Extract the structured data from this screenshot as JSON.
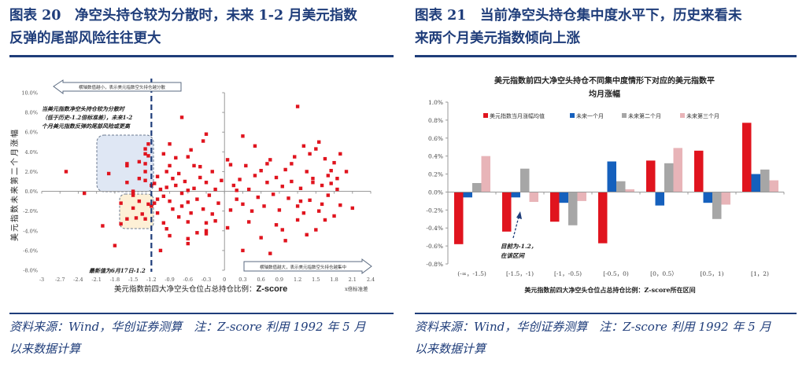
{
  "left": {
    "header_line1": "图表 20　净空头持仓较为分散时，未来 1-2 月美元指数",
    "header_line2": "反弹的尾部风险往往更大",
    "footer_line1": "资料来源：Wind，华创证券测算　注：Z-score 利用 1992 年 5 月",
    "footer_line2": "以来数据计算"
  },
  "right": {
    "header_line1": "图表 21　当前净空头持仓集中度水平下，历史来看未",
    "header_line2": "来两个月美元指数倾向上涨",
    "footer_line1": "资料来源：Wind，华创证券测算　注：Z-score 利用 1992 年 5 月",
    "footer_line2": "以来数据计算"
  },
  "colors": {
    "header": "#1f3d7a",
    "scatter": "#e0141e",
    "red": "#e0141e",
    "blue": "#1560bd",
    "gray": "#a6a6a6",
    "pink": "#e8b4b8"
  },
  "chart_data": [
    {
      "type": "scatter",
      "xlabel": "美元指数前四大净空头仓位占总持仓比例：",
      "xlabel_bold": "Z-score",
      "x_unit_label": "x倍标准差",
      "ylabel": "美元指数未来第二个月涨幅",
      "xlim": [
        -3,
        2.4
      ],
      "ylim": [
        -8,
        10
      ],
      "x_ticks": [
        "-3",
        "-2.7",
        "-2.4",
        "-2.1",
        "-1.8",
        "-1.5",
        "-1.2",
        "-0.9",
        "-0.6",
        "-0.3",
        "0",
        "0.3",
        "0.6",
        "0.9",
        "1.2",
        "1.5",
        "1.8",
        "2.1",
        "2.4"
      ],
      "y_ticks": [
        "10.0%",
        "8.0%",
        "6.0%",
        "4.0%",
        "2.0%",
        "0.0%",
        "-2.0%",
        "-4.0%",
        "-6.0%",
        "-8.0%"
      ],
      "reference_line_x": -1.2,
      "annotations": {
        "left_arrow": "横轴数值越小，表示美元指数空头持仓越分散",
        "right_arrow": "横轴数值越大，表示美元指数空头持仓越集中",
        "note_line1": "当美元指数净空头持仓较为分散时",
        "note_line2": "（低于历史-1.2倍标准差），未来1-2",
        "note_line3": "个月美元指数反弹的尾部风险或更高",
        "latest": "最新值为6月17日-1.2"
      },
      "points": [
        [
          -2.6,
          2.0
        ],
        [
          -2.3,
          -0.2
        ],
        [
          -1.9,
          1.8
        ],
        [
          -2.0,
          -3.5
        ],
        [
          -1.8,
          -5.5
        ],
        [
          -1.6,
          2.8
        ],
        [
          -1.6,
          2.6
        ],
        [
          -1.4,
          3.0
        ],
        [
          -1.4,
          1.3
        ],
        [
          -1.6,
          0.9
        ],
        [
          -1.5,
          0.0
        ],
        [
          -1.3,
          2.0
        ],
        [
          -1.25,
          4.8
        ],
        [
          -1.25,
          3.6
        ],
        [
          -1.3,
          3.8
        ],
        [
          -1.3,
          2.8
        ],
        [
          -1.3,
          1.1
        ],
        [
          -1.2,
          0.6
        ],
        [
          -1.5,
          -0.1
        ],
        [
          -1.4,
          -1.0
        ],
        [
          -1.5,
          -1.7
        ],
        [
          -1.35,
          -2.3
        ],
        [
          -1.3,
          -2.8
        ],
        [
          -1.25,
          -1.3
        ],
        [
          -1.6,
          -2.8
        ],
        [
          -1.7,
          -3.3
        ],
        [
          -1.7,
          -1.2
        ],
        [
          -1.2,
          -1.5
        ],
        [
          -1.45,
          -2.7
        ],
        [
          -1.3,
          4.3
        ],
        [
          -1.5,
          -0.4
        ],
        [
          -0.7,
          7.5
        ],
        [
          1.2,
          8.6
        ],
        [
          0.3,
          5.6
        ],
        [
          -0.3,
          5.8
        ],
        [
          -0.35,
          5.1
        ],
        [
          -0.9,
          4.8
        ],
        [
          -1.0,
          3.8
        ],
        [
          -0.8,
          3.4
        ],
        [
          -0.75,
          1.8
        ],
        [
          -0.55,
          4.2
        ],
        [
          -0.6,
          3.5
        ],
        [
          -0.5,
          2.6
        ],
        [
          -0.95,
          2.0
        ],
        [
          -1.1,
          1.5
        ],
        [
          -1.15,
          0.8
        ],
        [
          -1.05,
          0.2
        ],
        [
          -1.0,
          -0.5
        ],
        [
          -0.9,
          -1.0
        ],
        [
          -0.85,
          -1.8
        ],
        [
          -1.1,
          -2.2
        ],
        [
          -1.0,
          -3.2
        ],
        [
          -0.95,
          -3.8
        ],
        [
          -1.05,
          -6.0
        ],
        [
          -0.6,
          -5.3
        ],
        [
          -0.6,
          -4.8
        ],
        [
          -0.9,
          -4.5
        ],
        [
          -0.45,
          -4.2
        ],
        [
          -0.3,
          -4.3
        ],
        [
          -0.3,
          -4.0
        ],
        [
          -0.15,
          -3.0
        ],
        [
          -0.6,
          -3.1
        ],
        [
          -0.3,
          -3.2
        ],
        [
          -0.8,
          0.6
        ],
        [
          -0.7,
          -0.2
        ],
        [
          -0.65,
          1.0
        ],
        [
          -0.6,
          -1.1
        ],
        [
          -0.5,
          0.3
        ],
        [
          -0.45,
          -0.8
        ],
        [
          -0.4,
          1.4
        ],
        [
          -0.35,
          -1.8
        ],
        [
          -0.3,
          0.9
        ],
        [
          -0.25,
          -0.4
        ],
        [
          -0.2,
          2.0
        ],
        [
          -0.15,
          0.2
        ],
        [
          -0.1,
          -1.2
        ],
        [
          -0.05,
          1.1
        ],
        [
          -0.55,
          -2.2
        ],
        [
          -0.75,
          -2.6
        ],
        [
          -0.85,
          1.3
        ],
        [
          -1.1,
          -0.8
        ],
        [
          -0.95,
          0.4
        ],
        [
          -0.7,
          -1.5
        ],
        [
          -0.4,
          2.5
        ],
        [
          -0.2,
          -2.3
        ],
        [
          -1.15,
          -1.2
        ],
        [
          -0.9,
          2.6
        ],
        [
          -0.6,
          0.1
        ],
        [
          0.05,
          3.2
        ],
        [
          0.1,
          2.7
        ],
        [
          0.15,
          0.6
        ],
        [
          0.2,
          -0.8
        ],
        [
          0.25,
          1.2
        ],
        [
          0.3,
          -1.3
        ],
        [
          0.35,
          2.6
        ],
        [
          0.4,
          0.2
        ],
        [
          0.45,
          -2.0
        ],
        [
          0.5,
          1.6
        ],
        [
          0.55,
          -0.6
        ],
        [
          0.6,
          2.1
        ],
        [
          0.65,
          -1.5
        ],
        [
          0.7,
          0.9
        ],
        [
          0.75,
          3.2
        ],
        [
          0.8,
          -0.3
        ],
        [
          0.85,
          1.4
        ],
        [
          0.9,
          -1.9
        ],
        [
          0.95,
          0.5
        ],
        [
          1.0,
          2.2
        ],
        [
          0.05,
          -3.7
        ],
        [
          0.3,
          -6.0
        ],
        [
          0.75,
          -6.3
        ],
        [
          0.6,
          -4.7
        ],
        [
          1.0,
          -5.0
        ],
        [
          0.4,
          -3.1
        ],
        [
          0.85,
          -3.4
        ],
        [
          0.95,
          -3.9
        ],
        [
          0.2,
          0.1
        ],
        [
          0.1,
          -1.9
        ],
        [
          0.5,
          4.6
        ],
        [
          0.7,
          2.8
        ],
        [
          1.05,
          -0.7
        ],
        [
          1.1,
          1.0
        ],
        [
          1.15,
          3.5
        ],
        [
          1.2,
          -1.5
        ],
        [
          1.25,
          0.3
        ],
        [
          1.3,
          4.6
        ],
        [
          1.35,
          2.0
        ],
        [
          1.4,
          -0.9
        ],
        [
          1.45,
          1.3
        ],
        [
          1.5,
          4.3
        ],
        [
          1.55,
          -2.0
        ],
        [
          1.6,
          0.6
        ],
        [
          1.65,
          3.3
        ],
        [
          1.7,
          -0.4
        ],
        [
          1.75,
          2.1
        ],
        [
          1.8,
          -2.5
        ],
        [
          1.85,
          0.2
        ],
        [
          1.9,
          3.8
        ],
        [
          2.0,
          2.0
        ],
        [
          2.1,
          -1.7
        ],
        [
          1.35,
          -4.4
        ],
        [
          1.5,
          -3.9
        ],
        [
          1.2,
          -2.9
        ],
        [
          1.4,
          3.8
        ],
        [
          1.6,
          -1.3
        ],
        [
          1.7,
          1.6
        ],
        [
          1.8,
          2.9
        ],
        [
          1.55,
          5.0
        ],
        [
          1.25,
          -1.0
        ],
        [
          1.65,
          -2.9
        ],
        [
          1.9,
          -1.4
        ],
        [
          1.75,
          0.8
        ],
        [
          1.1,
          2.8
        ],
        [
          1.45,
          0.9
        ],
        [
          1.85,
          1.3
        ],
        [
          1.3,
          -2.2
        ]
      ]
    },
    {
      "type": "bar",
      "title_line1": "美元指数前四大净空头持仓不同集中度情形下对应的美元指数平",
      "title_line2": "均月涨幅",
      "xlabel": "美元指数前四大净空头仓位占总持仓比例：Z-score所在区间",
      "ylim": [
        -0.8,
        1.0
      ],
      "y_ticks": [
        "1.0%",
        "0.8%",
        "0.6%",
        "0.4%",
        "0.2%",
        "0.0%",
        "-0.2%",
        "-0.4%",
        "-0.6%",
        "-0.8%"
      ],
      "legend_position": "top",
      "categories": [
        "(-∞，-1.5)",
        "[-1.5，-1)",
        "[-1，-0.5)",
        "[-0.5，0)",
        "[0，0.5）",
        "[0.5，1)",
        "[1，2)"
      ],
      "series": [
        {
          "name": "美元指数当月涨幅均值",
          "color": "#e0141e",
          "values": [
            -0.58,
            -0.44,
            -0.33,
            -0.57,
            0.35,
            0.46,
            0.77
          ]
        },
        {
          "name": "未来一个月",
          "color": "#1560bd",
          "values": [
            -0.06,
            -0.06,
            -0.12,
            0.34,
            -0.15,
            -0.12,
            0.2
          ]
        },
        {
          "name": "未来第二个月",
          "color": "#a6a6a6",
          "values": [
            0.1,
            0.26,
            -0.37,
            0.12,
            0.32,
            -0.3,
            0.25
          ]
        },
        {
          "name": "未来第三个月",
          "color": "#e8b4b8",
          "values": [
            0.4,
            -0.11,
            -0.1,
            0.03,
            0.49,
            -0.14,
            0.13
          ]
        }
      ],
      "annotation_line1": "目前为-1.2，",
      "annotation_line2": "在该区间"
    }
  ]
}
